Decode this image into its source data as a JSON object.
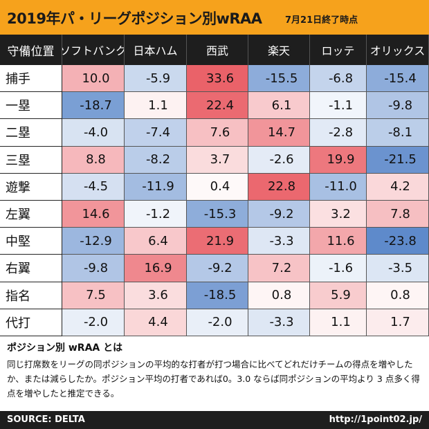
{
  "header": {
    "title": "2019年パ・リーグポジション別wRAA",
    "subtitle": "7月21日終了時点"
  },
  "chart_data": {
    "type": "heatmap",
    "corner_label": "守備位置",
    "columns": [
      "ソフトバンク",
      "日本ハム",
      "西武",
      "楽天",
      "ロッテ",
      "オリックス"
    ],
    "rows": [
      "捕手",
      "一塁",
      "二塁",
      "三塁",
      "遊撃",
      "左翼",
      "中堅",
      "右翼",
      "指名",
      "代打"
    ],
    "values": [
      [
        10.0,
        -5.9,
        33.6,
        -15.5,
        -6.8,
        -15.4
      ],
      [
        -18.7,
        1.1,
        22.4,
        6.1,
        -1.1,
        -9.8
      ],
      [
        -4.0,
        -7.4,
        7.6,
        14.7,
        -2.8,
        -8.1
      ],
      [
        8.8,
        -8.2,
        3.7,
        -2.6,
        19.9,
        -21.5
      ],
      [
        -4.5,
        -11.9,
        0.4,
        22.8,
        -11.0,
        4.2
      ],
      [
        14.6,
        -1.2,
        -15.3,
        -9.2,
        3.2,
        7.8
      ],
      [
        -12.9,
        6.4,
        21.9,
        -3.3,
        11.6,
        -23.8
      ],
      [
        -9.8,
        16.9,
        -9.2,
        7.2,
        -1.6,
        -3.5
      ],
      [
        7.5,
        3.6,
        -18.5,
        0.8,
        5.9,
        0.8
      ],
      [
        -2.0,
        4.4,
        -2.0,
        -3.3,
        1.1,
        1.7
      ]
    ],
    "color_positive": "#e8545c",
    "color_negative": "#4f7fc6",
    "color_neutral": "#ffffff"
  },
  "definition": {
    "title": "ポジション別 wRAA とは",
    "body": "同じ打席数をリーグの同ポジションの平均的な打者が打つ場合に比べてどれだけチームの得点を増やしたか、または減らしたか。ポジション平均の打者であれば0。3.0 ならば同ポジションの平均より 3 点多く得点を増やしたと推定できる。"
  },
  "footer": {
    "source": "SOURCE: DELTA",
    "url": "http://1point02.jp/"
  },
  "colors": {
    "banner": "#f6a21c",
    "header_bg": "#1e1e1e"
  }
}
